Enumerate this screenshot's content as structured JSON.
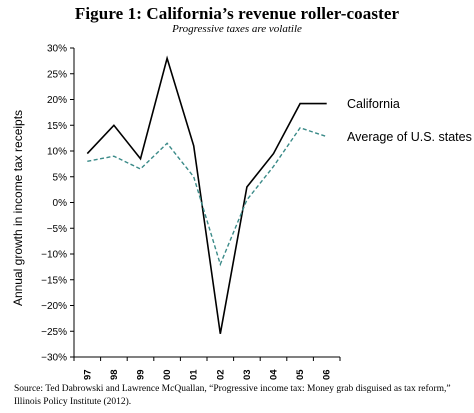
{
  "figure": {
    "title": "Figure 1: California’s revenue roller-coaster",
    "subtitle": "Progressive taxes are volatile",
    "source": "Source: Ted Dabrowski and Lawrence McQuallan, “Progressive income tax: Money grab disguised as tax reform,” Illinois Policy Institute (2012)."
  },
  "chart_data": {
    "type": "line",
    "title": "Figure 1: California’s revenue roller-coaster",
    "subtitle": "Progressive taxes are volatile",
    "xlabel": "",
    "ylabel": "Annual growth in income tax receipts",
    "categories": [
      "1997",
      "1998",
      "1999",
      "2000",
      "2001",
      "2002",
      "2003",
      "2004",
      "2005",
      "2006"
    ],
    "yticks": [
      "30%",
      "25%",
      "20%",
      "15%",
      "10%",
      "5%",
      "0%",
      "−5%",
      "−10%",
      "−15%",
      "−20%",
      "−25%",
      "−30%"
    ],
    "ylim": [
      -30,
      30
    ],
    "grid": false,
    "legend": "direct labels at line ends (right)",
    "series": [
      {
        "name": "California",
        "values": [
          9.5,
          15,
          8.5,
          28,
          11,
          -25.5,
          3,
          9.5,
          19.2,
          19.2
        ],
        "color": "#000000",
        "style": "solid"
      },
      {
        "name": "Average of U.S. states",
        "values": [
          8,
          9,
          6.5,
          11.5,
          5,
          -12,
          0.5,
          7,
          14.5,
          12.8
        ],
        "color": "#3a8a88",
        "style": "dashed"
      }
    ]
  }
}
